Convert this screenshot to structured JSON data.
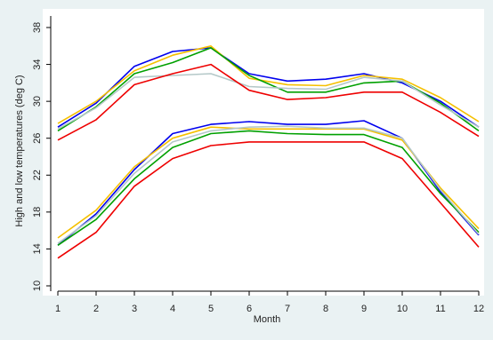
{
  "chart_data": {
    "type": "line",
    "title": "",
    "xlabel": "Month",
    "ylabel": "High and low temperatures (deg C)",
    "x": [
      1,
      2,
      3,
      4,
      5,
      6,
      7,
      8,
      9,
      10,
      11,
      12
    ],
    "xticks": [
      "1",
      "2",
      "3",
      "4",
      "5",
      "6",
      "7",
      "8",
      "9",
      "10",
      "11",
      "12"
    ],
    "yticks": [
      "10",
      "14",
      "18",
      "22",
      "26",
      "30",
      "34",
      "38"
    ],
    "ylim": [
      10,
      38
    ],
    "grid": false,
    "legend": "none",
    "series": [
      {
        "color": "#0000ee",
        "values": [
          27.2,
          29.8,
          33.8,
          35.4,
          35.8,
          33.0,
          32.2,
          32.4,
          33.0,
          32.0,
          30.0,
          27.2
        ]
      },
      {
        "color": "#f5c000",
        "values": [
          27.6,
          30.0,
          33.3,
          35.0,
          36.0,
          32.5,
          31.8,
          31.7,
          32.8,
          32.4,
          30.4,
          27.8
        ]
      },
      {
        "color": "#00a000",
        "values": [
          26.8,
          29.4,
          33.0,
          34.2,
          35.8,
          32.8,
          31.0,
          31.0,
          32.0,
          32.2,
          29.8,
          26.8
        ]
      },
      {
        "color": "#b4c8c8",
        "values": [
          27.0,
          29.3,
          32.6,
          32.8,
          33.0,
          31.6,
          31.4,
          31.3,
          32.6,
          32.2,
          29.6,
          27.2
        ]
      },
      {
        "color": "#ee0000",
        "values": [
          25.8,
          28.0,
          31.8,
          33.0,
          34.0,
          31.2,
          30.2,
          30.4,
          31.0,
          31.0,
          28.8,
          26.2
        ]
      },
      {
        "color": "#0000ee",
        "values": [
          14.4,
          17.8,
          22.6,
          26.5,
          27.5,
          27.8,
          27.5,
          27.5,
          27.9,
          26.0,
          20.2,
          15.5
        ]
      },
      {
        "color": "#f5c000",
        "values": [
          15.2,
          18.2,
          22.9,
          26.0,
          27.2,
          27.0,
          27.0,
          27.0,
          27.0,
          25.8,
          20.6,
          16.2
        ]
      },
      {
        "color": "#00a000",
        "values": [
          14.4,
          17.2,
          21.6,
          25.0,
          26.5,
          26.8,
          26.5,
          26.4,
          26.4,
          25.0,
          20.0,
          15.8
        ]
      },
      {
        "color": "#b4c8c8",
        "values": [
          14.6,
          17.6,
          22.2,
          25.6,
          26.8,
          27.2,
          27.3,
          27.1,
          27.1,
          26.0,
          20.4,
          15.6
        ]
      },
      {
        "color": "#ee0000",
        "values": [
          13.0,
          15.8,
          20.8,
          23.8,
          25.2,
          25.6,
          25.6,
          25.6,
          25.6,
          23.8,
          19.0,
          14.2
        ]
      }
    ]
  }
}
